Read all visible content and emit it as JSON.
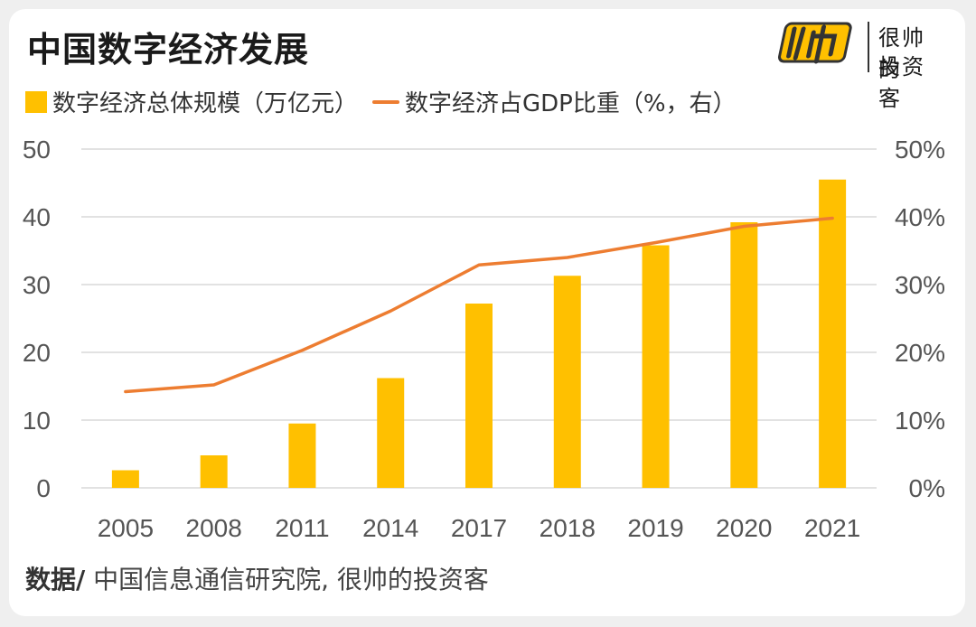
{
  "header": {
    "title": "中国数字经济发展",
    "logo_line1": "很帅的",
    "logo_line2": "投资客"
  },
  "legend": {
    "bar_label": "数字经济总体规模（万亿元）",
    "line_label": "数字经济占GDP比重（%，右）"
  },
  "source": {
    "label": "数据/",
    "text": " 中国信息通信研究院, 很帅的投资客"
  },
  "colors": {
    "bar": "#FFC000",
    "line": "#ED7D31",
    "grid": "#d9d9d9",
    "text": "#555555"
  },
  "chart_data": {
    "type": "bar",
    "categories": [
      "2005",
      "2008",
      "2011",
      "2014",
      "2017",
      "2018",
      "2019",
      "2020",
      "2021"
    ],
    "series": [
      {
        "name": "数字经济总体规模（万亿元）",
        "type": "bar",
        "axis": "left",
        "values": [
          2.6,
          4.8,
          9.5,
          16.2,
          27.2,
          31.3,
          35.8,
          39.2,
          45.5
        ]
      },
      {
        "name": "数字经济占GDP比重（%，右）",
        "type": "line",
        "axis": "right",
        "values": [
          14.2,
          15.2,
          20.3,
          26.1,
          32.9,
          34.0,
          36.2,
          38.6,
          39.8
        ]
      }
    ],
    "ylim_left": [
      0,
      50
    ],
    "ylim_right": [
      0,
      50
    ],
    "yticks_left": [
      "0",
      "10",
      "20",
      "30",
      "40",
      "50"
    ],
    "yticks_right": [
      "0%",
      "10%",
      "20%",
      "30%",
      "40%",
      "50%"
    ],
    "grid": true,
    "legend_position": "top-left"
  }
}
